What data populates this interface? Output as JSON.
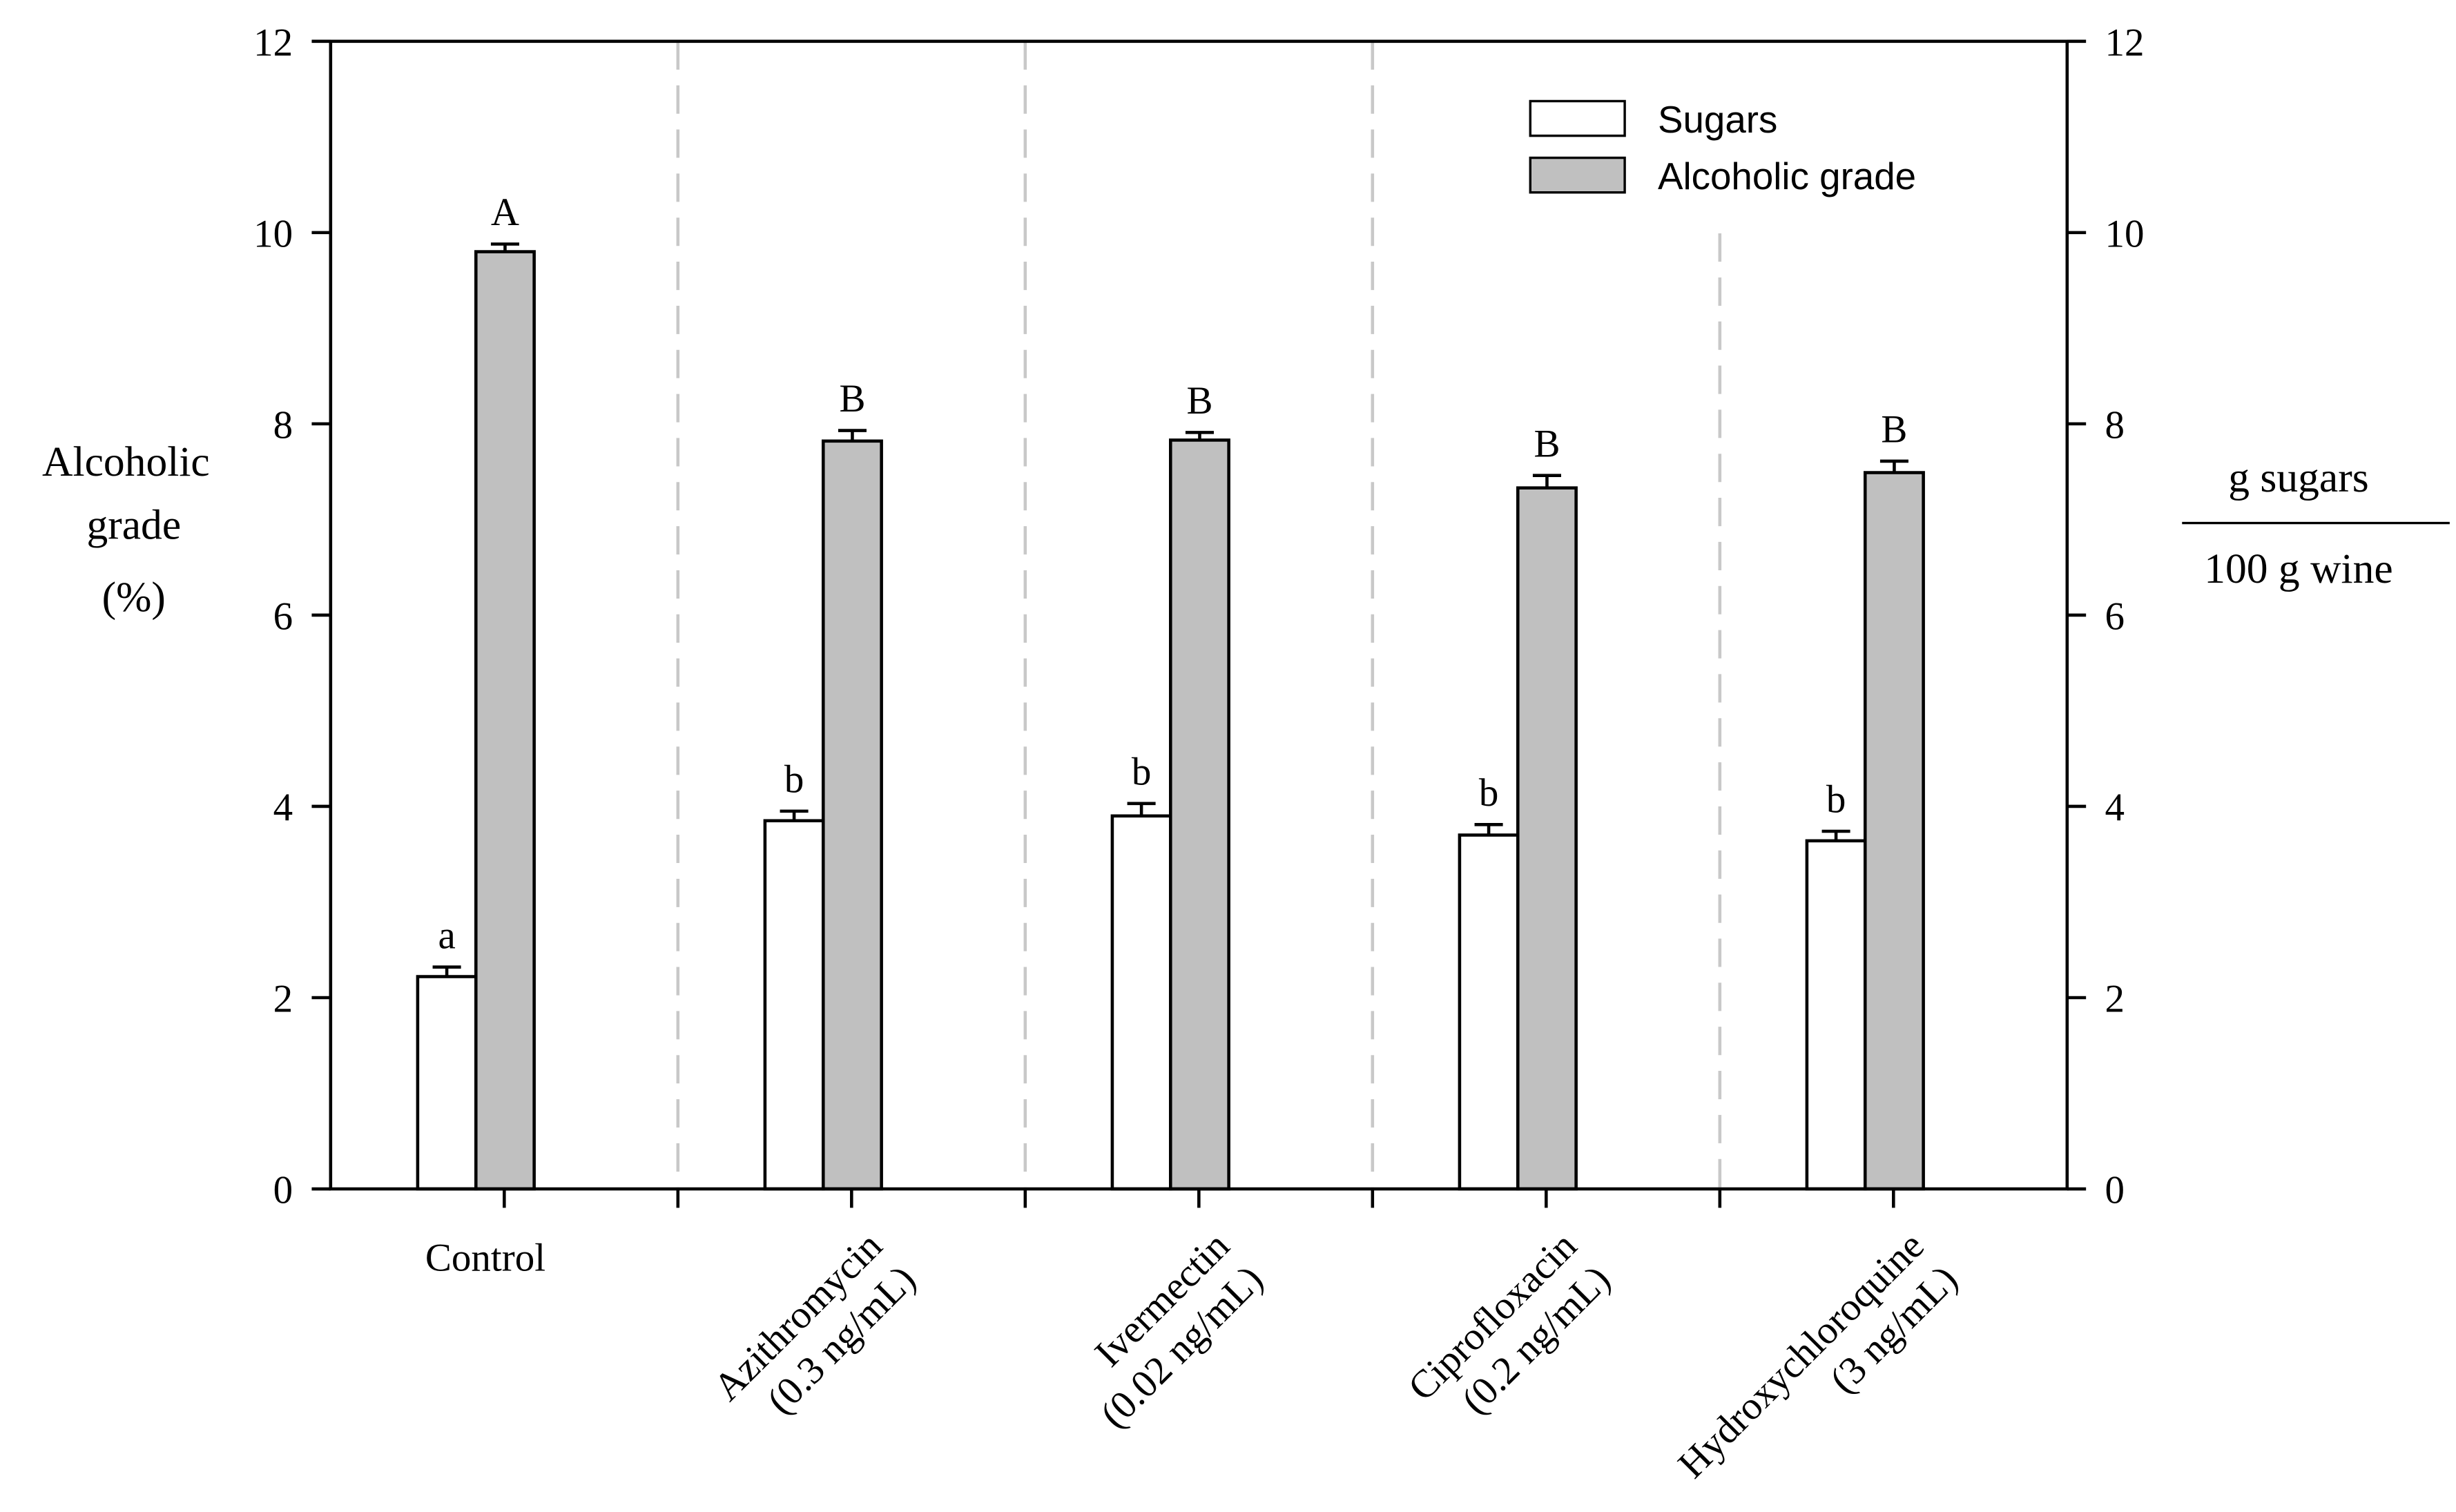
{
  "chart_data": {
    "type": "bar",
    "categories": [
      [
        "Control"
      ],
      [
        "Azithromycin",
        "(0.3 ng/mL)"
      ],
      [
        "Ivermectin",
        "(0.02 ng/mL)"
      ],
      [
        "Ciprofloxacin",
        "(0.2 ng/mL)"
      ],
      [
        "Hydroxychloroquine",
        "(3 ng/mL)"
      ]
    ],
    "series": [
      {
        "name": "Sugars",
        "color": "#ffffff",
        "axis": "right",
        "values": [
          2.22,
          3.85,
          3.9,
          3.7,
          3.64
        ],
        "errors": [
          0.1,
          0.1,
          0.13,
          0.11,
          0.1
        ],
        "letters": [
          "a",
          "b",
          "b",
          "b",
          "b"
        ]
      },
      {
        "name": "Alcoholic grade",
        "color": "#c0c0c0",
        "axis": "left",
        "values": [
          9.8,
          7.82,
          7.83,
          7.33,
          7.49
        ],
        "errors": [
          0.08,
          0.11,
          0.08,
          0.13,
          0.12
        ],
        "letters": [
          "A",
          "B",
          "B",
          "B",
          "B"
        ]
      }
    ],
    "ylabel_left": [
      "Alcoholic",
      "grade",
      "(%)"
    ],
    "ylabel_right": {
      "numerator": "g sugars",
      "denominator": "100 g wine"
    },
    "ylim": [
      0,
      12
    ],
    "yticks": [
      "0",
      "2",
      "4",
      "6",
      "8",
      "10",
      "12"
    ],
    "grid": false,
    "legend_position": "top-right"
  }
}
